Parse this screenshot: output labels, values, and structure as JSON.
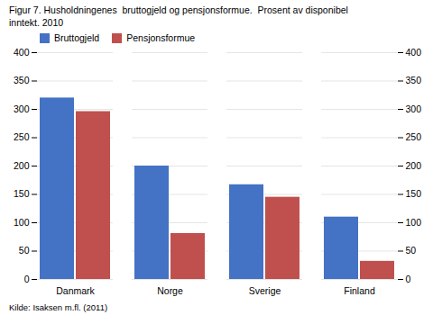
{
  "chart_data": {
    "type": "bar",
    "title": "Figur 7. Husholdningenes  bruttogjeld og pensjonsformue.  Prosent av disponibel\ninntekt. 2010",
    "source": "Kilde: Isaksen m.fl. (2011)",
    "categories": [
      "Danmark",
      "Norge",
      "Sverige",
      "Finland"
    ],
    "series": [
      {
        "name": "Bruttogjeld",
        "color": "#4472C4",
        "values": [
          320,
          200,
          167,
          110
        ]
      },
      {
        "name": "Pensjonsformue",
        "color": "#C0504D",
        "values": [
          296,
          81,
          145,
          32
        ]
      }
    ],
    "ylim": [
      0,
      400
    ],
    "yticks": [
      0,
      50,
      100,
      150,
      200,
      250,
      300,
      350,
      400
    ],
    "grid": true,
    "legend": "upper left"
  }
}
